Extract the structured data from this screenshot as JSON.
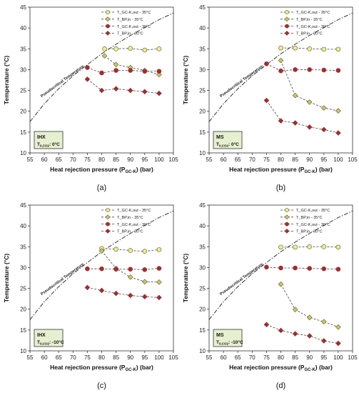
{
  "chart_data": [
    {
      "type": "line",
      "caption": "(a)",
      "box_label_main": "IHX",
      "box_label_sub": "T",
      "box_label_subscript": "0,CO2",
      "box_label_value": ": 0°C",
      "xlabel": "Heat rejection pressure (P",
      "xlabel_sub": "GC-K",
      "xlabel_tail": ") (bar)",
      "ylabel": "Temperature (°C)",
      "xlim": [
        55,
        105
      ],
      "ylim": [
        10,
        45
      ],
      "xticks": [
        55,
        60,
        65,
        70,
        75,
        80,
        85,
        90,
        95,
        100,
        105
      ],
      "yticks": [
        10,
        15,
        20,
        25,
        30,
        35,
        40,
        45
      ],
      "pseudocritical_label": "Pseudocritical Temperature",
      "pseudocritical": [
        [
          55,
          17.5
        ],
        [
          60,
          21.8
        ],
        [
          65,
          25.4
        ],
        [
          70,
          28.5
        ],
        [
          75,
          31.2
        ],
        [
          80,
          33.8
        ],
        [
          85,
          36.1
        ],
        [
          90,
          38.2
        ],
        [
          95,
          40.1
        ],
        [
          100,
          42.0
        ],
        [
          105,
          43.6
        ]
      ],
      "series": [
        {
          "name": "T_GC-K,out - 35°C",
          "color": "#f2ee7d",
          "x": [
            81,
            85,
            90,
            95,
            100
          ],
          "y": [
            35.0,
            35.0,
            35.1,
            34.7,
            35.0
          ]
        },
        {
          "name": "T_BP,in - 35°C",
          "color": "#d3c94b",
          "x": [
            81,
            85,
            90,
            95,
            100
          ],
          "y": [
            33.3,
            31.2,
            30.5,
            29.8,
            28.8
          ]
        },
        {
          "name": "T_GC-K,out - 30°C",
          "color": "#c21f1f",
          "x": [
            75,
            80,
            85,
            90,
            95,
            100
          ],
          "y": [
            30.5,
            29.2,
            29.8,
            29.8,
            29.6,
            29.6
          ]
        },
        {
          "name": "T_BP,in - 30°C",
          "color": "#c21f1f",
          "x": [
            75,
            80,
            85,
            90,
            95,
            100
          ],
          "y": [
            27.7,
            25.0,
            25.4,
            25.0,
            24.7,
            24.3
          ]
        }
      ]
    },
    {
      "type": "line",
      "caption": "(b)",
      "box_label_main": "MS",
      "box_label_sub": "T",
      "box_label_subscript": "0,CO2",
      "box_label_value": ": 0°C",
      "xlabel": "Heat rejection pressure (P",
      "xlabel_sub": "GC-K",
      "xlabel_tail": ") (bar)",
      "ylabel": "Temperature (°C)",
      "xlim": [
        55,
        105
      ],
      "ylim": [
        10,
        45
      ],
      "xticks": [
        55,
        60,
        65,
        70,
        75,
        80,
        85,
        90,
        95,
        100,
        105
      ],
      "yticks": [
        10,
        15,
        20,
        25,
        30,
        35,
        40,
        45
      ],
      "pseudocritical_label": "Pseudocritical Temperature",
      "pseudocritical": [
        [
          55,
          17.5
        ],
        [
          60,
          21.8
        ],
        [
          65,
          25.4
        ],
        [
          70,
          28.5
        ],
        [
          75,
          31.2
        ],
        [
          80,
          33.8
        ],
        [
          85,
          36.1
        ],
        [
          90,
          38.2
        ],
        [
          95,
          40.1
        ],
        [
          100,
          42.0
        ],
        [
          105,
          43.6
        ]
      ],
      "series": [
        {
          "name": "T_GC-K,out - 35°C",
          "color": "#f2ee7d",
          "x": [
            80,
            85,
            90,
            95,
            100
          ],
          "y": [
            35.2,
            35.2,
            35.0,
            34.9,
            34.9
          ]
        },
        {
          "name": "T_BP,in - 35°C",
          "color": "#d3c94b",
          "x": [
            80,
            85,
            90,
            95,
            100
          ],
          "y": [
            32.2,
            23.8,
            22.2,
            20.8,
            20.1
          ]
        },
        {
          "name": "T_GC-K,out - 30°C",
          "color": "#c21f1f",
          "x": [
            75,
            80,
            85,
            90,
            95,
            100
          ],
          "y": [
            31.4,
            29.7,
            30.0,
            30.0,
            29.9,
            29.8
          ]
        },
        {
          "name": "T_BP,in - 30°C",
          "color": "#c21f1f",
          "x": [
            75,
            80,
            85,
            90,
            95,
            100
          ],
          "y": [
            22.6,
            17.7,
            17.2,
            16.2,
            15.6,
            14.8
          ]
        }
      ]
    },
    {
      "type": "line",
      "caption": "(c)",
      "box_label_main": "IHX",
      "box_label_sub": "T",
      "box_label_subscript": "0,CO2",
      "box_label_value": ": -10°C",
      "xlabel": "Heat rejection pressure (P",
      "xlabel_sub": "GC-K",
      "xlabel_tail": ") (bar)",
      "ylabel": "Temperature (°C)",
      "xlim": [
        55,
        105
      ],
      "ylim": [
        10,
        45
      ],
      "xticks": [
        55,
        60,
        65,
        70,
        75,
        80,
        85,
        90,
        95,
        100,
        105
      ],
      "yticks": [
        10,
        15,
        20,
        25,
        30,
        35,
        40,
        45
      ],
      "pseudocritical_label": "Pseudocritical Temperature",
      "pseudocritical": [
        [
          55,
          17.5
        ],
        [
          60,
          21.8
        ],
        [
          65,
          25.4
        ],
        [
          70,
          28.5
        ],
        [
          75,
          31.2
        ],
        [
          80,
          33.8
        ],
        [
          85,
          36.1
        ],
        [
          90,
          38.2
        ],
        [
          95,
          40.1
        ],
        [
          100,
          42.0
        ],
        [
          105,
          43.6
        ]
      ],
      "series": [
        {
          "name": "T_GC-K,out - 35°C",
          "color": "#f2ee7d",
          "x": [
            80,
            85,
            90,
            95,
            100
          ],
          "y": [
            34.6,
            34.4,
            34.1,
            33.9,
            34.3
          ]
        },
        {
          "name": "T_BP,in - 35°C",
          "color": "#d3c94b",
          "x": [
            80,
            85,
            90,
            95,
            100
          ],
          "y": [
            34.0,
            29.8,
            27.7,
            26.6,
            26.5
          ]
        },
        {
          "name": "T_GC-K,out - 30°C",
          "color": "#c21f1f",
          "x": [
            75,
            80,
            85,
            90,
            95,
            100
          ],
          "y": [
            29.7,
            29.7,
            29.6,
            29.6,
            29.5,
            29.8
          ]
        },
        {
          "name": "T_BP,in - 30°C",
          "color": "#c21f1f",
          "x": [
            75,
            80,
            85,
            90,
            95,
            100
          ],
          "y": [
            25.2,
            24.5,
            23.8,
            23.3,
            23.0,
            22.8
          ]
        }
      ]
    },
    {
      "type": "line",
      "caption": "(d)",
      "box_label_main": "MS",
      "box_label_sub": "T",
      "box_label_subscript": "0,CO2",
      "box_label_value": ": -10°C",
      "xlabel": "Heat rejection pressure (P",
      "xlabel_sub": "GC-K",
      "xlabel_tail": ") (bar)",
      "ylabel": "Temperature (°C)",
      "xlim": [
        55,
        105
      ],
      "ylim": [
        10,
        45
      ],
      "xticks": [
        55,
        60,
        65,
        70,
        75,
        80,
        85,
        90,
        95,
        100,
        105
      ],
      "yticks": [
        10,
        15,
        20,
        25,
        30,
        35,
        40,
        45
      ],
      "pseudocritical_label": "Pseudocritical Temperature",
      "pseudocritical": [
        [
          55,
          17.5
        ],
        [
          60,
          21.8
        ],
        [
          65,
          25.4
        ],
        [
          70,
          28.5
        ],
        [
          75,
          31.2
        ],
        [
          80,
          33.8
        ],
        [
          85,
          36.1
        ],
        [
          90,
          38.2
        ],
        [
          95,
          40.1
        ],
        [
          100,
          42.0
        ],
        [
          105,
          43.6
        ]
      ],
      "series": [
        {
          "name": "T_GC-K,out - 35°C",
          "color": "#f2ee7d",
          "x": [
            80,
            85,
            90,
            95,
            100
          ],
          "y": [
            34.9,
            34.9,
            35.0,
            35.0,
            34.9
          ]
        },
        {
          "name": "T_BP,in - 35°C",
          "color": "#d3c94b",
          "x": [
            80,
            85,
            90,
            95,
            100
          ],
          "y": [
            26.0,
            19.9,
            18.0,
            17.0,
            15.7
          ]
        },
        {
          "name": "T_GC-K,out - 30°C",
          "color": "#c21f1f",
          "x": [
            75,
            80,
            85,
            90,
            95,
            100
          ],
          "y": [
            30.1,
            29.9,
            29.9,
            29.8,
            29.7,
            29.6
          ]
        },
        {
          "name": "T_BP,in - 30°C",
          "color": "#c21f1f",
          "x": [
            75,
            80,
            85,
            90,
            95,
            100
          ],
          "y": [
            16.3,
            14.9,
            14.1,
            13.6,
            12.4,
            11.8
          ]
        }
      ]
    }
  ]
}
